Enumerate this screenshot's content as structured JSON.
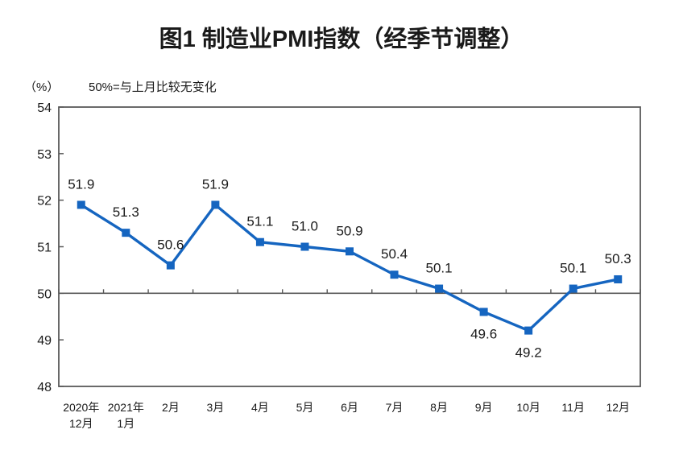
{
  "header": {
    "title": "图1 制造业PMI指数（经季节调整）"
  },
  "axis_notes": {
    "unit_label": "（%）",
    "baseline_note": "50%=与上月比较无变化"
  },
  "colors": {
    "line": "#1565C0",
    "axis": "#595959",
    "text": "#1a1a1a",
    "data_label": "#333333"
  },
  "chart_data": {
    "type": "line",
    "title": "图1 制造业PMI指数（经季节调整）",
    "ylabel": "（%）",
    "annotation": "50%=与上月比较无变化",
    "categories": [
      "2020年\n12月",
      "2021年\n1月",
      "2月",
      "3月",
      "4月",
      "5月",
      "6月",
      "7月",
      "8月",
      "9月",
      "10月",
      "11月",
      "12月"
    ],
    "values": [
      51.9,
      51.3,
      50.6,
      51.9,
      51.1,
      51.0,
      50.9,
      50.4,
      50.1,
      49.6,
      49.2,
      50.1,
      50.3
    ],
    "data_labels": [
      "51.9",
      "51.3",
      "50.6",
      "51.9",
      "51.1",
      "51.0",
      "50.9",
      "50.4",
      "50.1",
      "49.6",
      "49.2",
      "50.1",
      "50.3"
    ],
    "ylim": [
      48,
      54
    ],
    "y_ticks": [
      54,
      53,
      52,
      51,
      50,
      49,
      48
    ],
    "x_axis_crosses_at": 50,
    "grid": false,
    "legend_position": "none",
    "marker": "square",
    "series_name": "制造业PMI"
  }
}
